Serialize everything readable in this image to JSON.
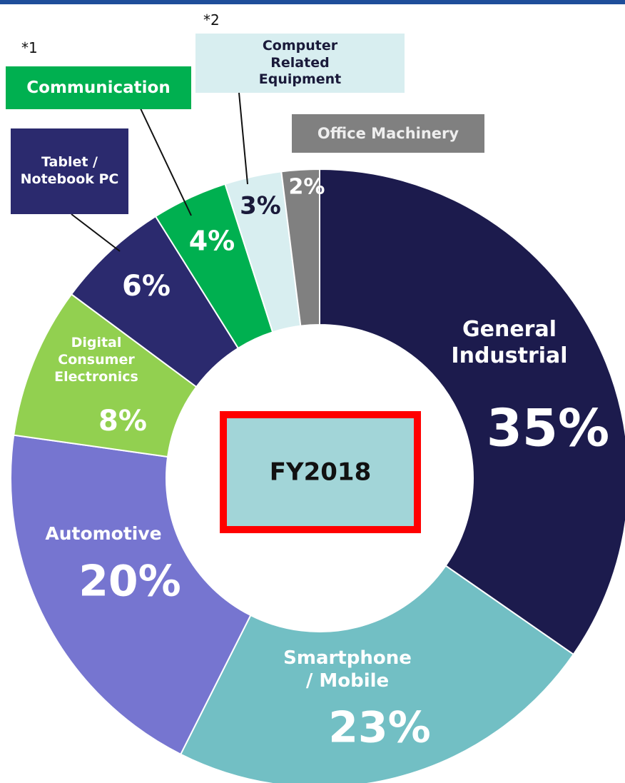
{
  "chart_data": {
    "type": "donut",
    "center_label": "FY2018",
    "categories": [
      "General Industrial",
      "Smartphone / Mobile",
      "Automotive",
      "Digital Consumer Electronics",
      "Tablet / Notebook PC",
      "Communication",
      "Computer Related Equipment",
      "Office Machinery"
    ],
    "values": [
      35,
      23,
      20,
      8,
      6,
      4,
      3,
      2
    ],
    "value_labels": [
      "35%",
      "23%",
      "20%",
      "8%",
      "6%",
      "4%",
      "3%",
      "2%"
    ],
    "colors": [
      "#1c1b4d",
      "#72bfc4",
      "#7675d0",
      "#92d050",
      "#2b2a6e",
      "#00b050",
      "#d8eef0",
      "#808080"
    ],
    "annotations": [
      "*1",
      "*2"
    ]
  }
}
